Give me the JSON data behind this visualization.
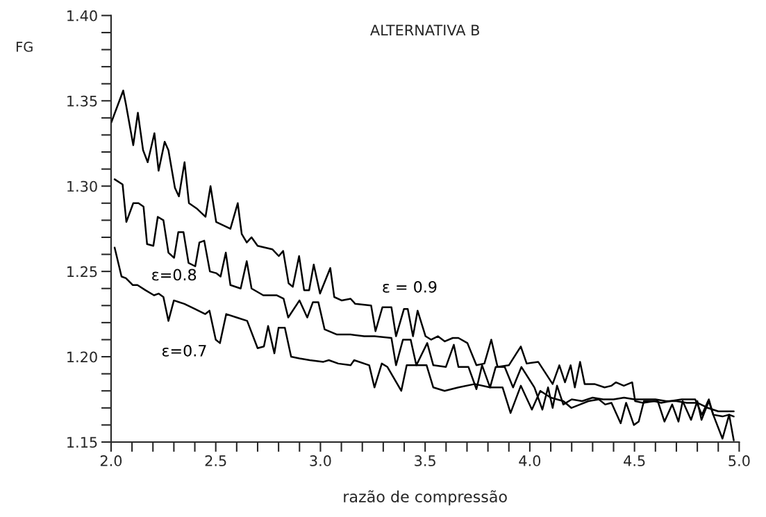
{
  "chart_data": {
    "type": "line",
    "title": "ALTERNATIVA B",
    "xlabel": "razão de compressão",
    "ylabel": "FG",
    "xlim": [
      2.0,
      5.0
    ],
    "ylim": [
      1.15,
      1.4
    ],
    "xticks": [
      {
        "value": 2.0,
        "label": "2.0"
      },
      {
        "value": 2.1,
        "label": null
      },
      {
        "value": 2.2,
        "label": null
      },
      {
        "value": 2.3,
        "label": null
      },
      {
        "value": 2.4,
        "label": null
      },
      {
        "value": 2.5,
        "label": "2.5"
      },
      {
        "value": 2.6,
        "label": null
      },
      {
        "value": 2.7,
        "label": null
      },
      {
        "value": 2.8,
        "label": null
      },
      {
        "value": 2.9,
        "label": null
      },
      {
        "value": 3.0,
        "label": "3.0"
      },
      {
        "value": 3.1,
        "label": null
      },
      {
        "value": 3.2,
        "label": null
      },
      {
        "value": 3.3,
        "label": null
      },
      {
        "value": 3.4,
        "label": null
      },
      {
        "value": 3.5,
        "label": "3.5"
      },
      {
        "value": 3.6,
        "label": null
      },
      {
        "value": 3.7,
        "label": null
      },
      {
        "value": 3.8,
        "label": null
      },
      {
        "value": 3.9,
        "label": null
      },
      {
        "value": 4.0,
        "label": "4.0"
      },
      {
        "value": 4.1,
        "label": null
      },
      {
        "value": 4.2,
        "label": null
      },
      {
        "value": 4.3,
        "label": null
      },
      {
        "value": 4.4,
        "label": null
      },
      {
        "value": 4.5,
        "label": "4.5"
      },
      {
        "value": 4.6,
        "label": null
      },
      {
        "value": 4.7,
        "label": null
      },
      {
        "value": 4.8,
        "label": null
      },
      {
        "value": 4.9,
        "label": null
      },
      {
        "value": 5.0,
        "label": "5.0"
      }
    ],
    "yticks": [
      {
        "value": 1.15,
        "label": "1.15"
      },
      {
        "value": 1.16,
        "label": null
      },
      {
        "value": 1.17,
        "label": null
      },
      {
        "value": 1.18,
        "label": null
      },
      {
        "value": 1.19,
        "label": null
      },
      {
        "value": 1.2,
        "label": "1.20"
      },
      {
        "value": 1.21,
        "label": null
      },
      {
        "value": 1.22,
        "label": null
      },
      {
        "value": 1.23,
        "label": null
      },
      {
        "value": 1.24,
        "label": null
      },
      {
        "value": 1.25,
        "label": "1.25"
      },
      {
        "value": 1.26,
        "label": null
      },
      {
        "value": 1.27,
        "label": null
      },
      {
        "value": 1.28,
        "label": null
      },
      {
        "value": 1.29,
        "label": null
      },
      {
        "value": 1.3,
        "label": "1.30"
      },
      {
        "value": 1.31,
        "label": null
      },
      {
        "value": 1.32,
        "label": null
      },
      {
        "value": 1.33,
        "label": null
      },
      {
        "value": 1.34,
        "label": null
      },
      {
        "value": 1.35,
        "label": "1.35"
      },
      {
        "value": 1.36,
        "label": null
      },
      {
        "value": 1.37,
        "label": null
      },
      {
        "value": 1.38,
        "label": null
      },
      {
        "value": 1.39,
        "label": null
      },
      {
        "value": 1.4,
        "label": "1.40"
      }
    ],
    "grid": false,
    "legend": false,
    "marker": "none",
    "line_style": "solid",
    "series": [
      {
        "name": "ε = 0.9",
        "color": "#000000",
        "x": [
          2.0,
          2.058,
          2.071,
          2.106,
          2.128,
          2.153,
          2.175,
          2.207,
          2.227,
          2.256,
          2.274,
          2.305,
          2.324,
          2.351,
          2.372,
          2.408,
          2.451,
          2.475,
          2.502,
          2.57,
          2.605,
          2.624,
          2.648,
          2.671,
          2.7,
          2.77,
          2.801,
          2.822,
          2.848,
          2.868,
          2.898,
          2.922,
          2.946,
          2.968,
          2.998,
          3.047,
          3.066,
          3.101,
          3.144,
          3.166,
          3.242,
          3.263,
          3.296,
          3.339,
          3.361,
          3.399,
          3.417,
          3.442,
          3.464,
          3.502,
          3.529,
          3.561,
          3.594,
          3.632,
          3.659,
          3.702,
          3.745,
          3.783,
          3.816,
          3.846,
          3.9,
          3.957,
          3.985,
          4.04,
          4.109,
          4.141,
          4.168,
          4.195,
          4.215,
          4.24,
          4.262,
          4.309,
          4.357,
          4.39,
          4.411,
          4.449,
          4.489,
          4.503,
          4.541,
          4.595,
          4.627,
          4.671,
          4.725,
          4.79,
          4.822,
          4.855,
          4.876,
          4.92,
          4.952,
          4.974
        ],
        "values": [
          1.337,
          1.356,
          1.348,
          1.324,
          1.343,
          1.321,
          1.314,
          1.331,
          1.309,
          1.326,
          1.321,
          1.299,
          1.294,
          1.314,
          1.29,
          1.287,
          1.282,
          1.3,
          1.279,
          1.275,
          1.29,
          1.272,
          1.267,
          1.27,
          1.265,
          1.263,
          1.259,
          1.262,
          1.243,
          1.241,
          1.259,
          1.239,
          1.239,
          1.254,
          1.237,
          1.252,
          1.235,
          1.233,
          1.234,
          1.231,
          1.23,
          1.215,
          1.229,
          1.229,
          1.212,
          1.228,
          1.228,
          1.212,
          1.227,
          1.212,
          1.21,
          1.212,
          1.209,
          1.211,
          1.211,
          1.208,
          1.195,
          1.196,
          1.21,
          1.194,
          1.195,
          1.206,
          1.196,
          1.197,
          1.184,
          1.195,
          1.185,
          1.195,
          1.182,
          1.197,
          1.184,
          1.184,
          1.182,
          1.183,
          1.185,
          1.183,
          1.185,
          1.174,
          1.173,
          1.174,
          1.173,
          1.174,
          1.175,
          1.175,
          1.166,
          1.175,
          1.166,
          1.165,
          1.166,
          1.165
        ]
      },
      {
        "name": "ε=0.8",
        "color": "#000000",
        "x": [
          2.017,
          2.055,
          2.073,
          2.106,
          2.131,
          2.155,
          2.172,
          2.202,
          2.223,
          2.25,
          2.274,
          2.301,
          2.321,
          2.346,
          2.37,
          2.402,
          2.422,
          2.445,
          2.472,
          2.502,
          2.523,
          2.548,
          2.57,
          2.619,
          2.648,
          2.671,
          2.727,
          2.792,
          2.824,
          2.846,
          2.9,
          2.937,
          2.964,
          2.99,
          3.02,
          3.079,
          3.144,
          3.209,
          3.258,
          3.339,
          3.361,
          3.394,
          3.431,
          3.458,
          3.51,
          3.539,
          3.599,
          3.637,
          3.659,
          3.707,
          3.745,
          3.772,
          3.81,
          3.837,
          3.88,
          3.92,
          3.96,
          4.022,
          4.06,
          4.087,
          4.109,
          4.13,
          4.16,
          4.2,
          4.25,
          4.3,
          4.35,
          4.4,
          4.45,
          4.5,
          4.55,
          4.6,
          4.65,
          4.7,
          4.75,
          4.8,
          4.85,
          4.9,
          4.95,
          4.974
        ],
        "values": [
          1.304,
          1.301,
          1.279,
          1.29,
          1.29,
          1.288,
          1.266,
          1.265,
          1.282,
          1.28,
          1.261,
          1.258,
          1.273,
          1.273,
          1.255,
          1.253,
          1.267,
          1.268,
          1.25,
          1.249,
          1.247,
          1.261,
          1.242,
          1.24,
          1.256,
          1.24,
          1.236,
          1.236,
          1.234,
          1.223,
          1.233,
          1.223,
          1.232,
          1.232,
          1.216,
          1.213,
          1.213,
          1.212,
          1.212,
          1.211,
          1.195,
          1.21,
          1.21,
          1.195,
          1.208,
          1.195,
          1.194,
          1.207,
          1.194,
          1.194,
          1.181,
          1.195,
          1.182,
          1.194,
          1.194,
          1.182,
          1.194,
          1.182,
          1.169,
          1.182,
          1.17,
          1.183,
          1.172,
          1.175,
          1.174,
          1.176,
          1.175,
          1.175,
          1.176,
          1.175,
          1.175,
          1.175,
          1.174,
          1.174,
          1.173,
          1.173,
          1.17,
          1.168,
          1.168,
          1.168
        ]
      },
      {
        "name": "ε=0.7",
        "color": "#000000",
        "x": [
          2.017,
          2.05,
          2.071,
          2.104,
          2.126,
          2.164,
          2.205,
          2.227,
          2.25,
          2.274,
          2.3,
          2.35,
          2.4,
          2.45,
          2.47,
          2.5,
          2.52,
          2.55,
          2.6,
          2.65,
          2.7,
          2.73,
          2.75,
          2.78,
          2.8,
          2.83,
          2.86,
          2.9,
          2.949,
          3.014,
          3.04,
          3.085,
          3.144,
          3.161,
          3.233,
          3.258,
          3.293,
          3.32,
          3.386,
          3.412,
          3.45,
          3.507,
          3.539,
          3.593,
          3.659,
          3.737,
          3.81,
          3.87,
          3.908,
          3.957,
          4.01,
          4.05,
          4.1,
          4.16,
          4.198,
          4.24,
          4.28,
          4.33,
          4.36,
          4.39,
          4.434,
          4.46,
          4.497,
          4.52,
          4.545,
          4.611,
          4.643,
          4.68,
          4.71,
          4.73,
          4.77,
          4.8,
          4.82,
          4.855,
          4.876,
          4.92,
          4.952,
          4.974
        ],
        "values": [
          1.264,
          1.247,
          1.246,
          1.242,
          1.242,
          1.239,
          1.236,
          1.237,
          1.235,
          1.221,
          1.233,
          1.231,
          1.228,
          1.225,
          1.227,
          1.21,
          1.208,
          1.225,
          1.223,
          1.221,
          1.205,
          1.206,
          1.218,
          1.202,
          1.217,
          1.217,
          1.2,
          1.199,
          1.198,
          1.197,
          1.198,
          1.196,
          1.195,
          1.198,
          1.195,
          1.182,
          1.196,
          1.194,
          1.18,
          1.195,
          1.195,
          1.195,
          1.182,
          1.18,
          1.182,
          1.184,
          1.182,
          1.182,
          1.167,
          1.183,
          1.169,
          1.18,
          1.176,
          1.174,
          1.17,
          1.172,
          1.174,
          1.175,
          1.172,
          1.173,
          1.161,
          1.173,
          1.16,
          1.162,
          1.174,
          1.174,
          1.162,
          1.172,
          1.162,
          1.174,
          1.163,
          1.174,
          1.163,
          1.174,
          1.166,
          1.152,
          1.166,
          1.151
        ]
      }
    ]
  }
}
